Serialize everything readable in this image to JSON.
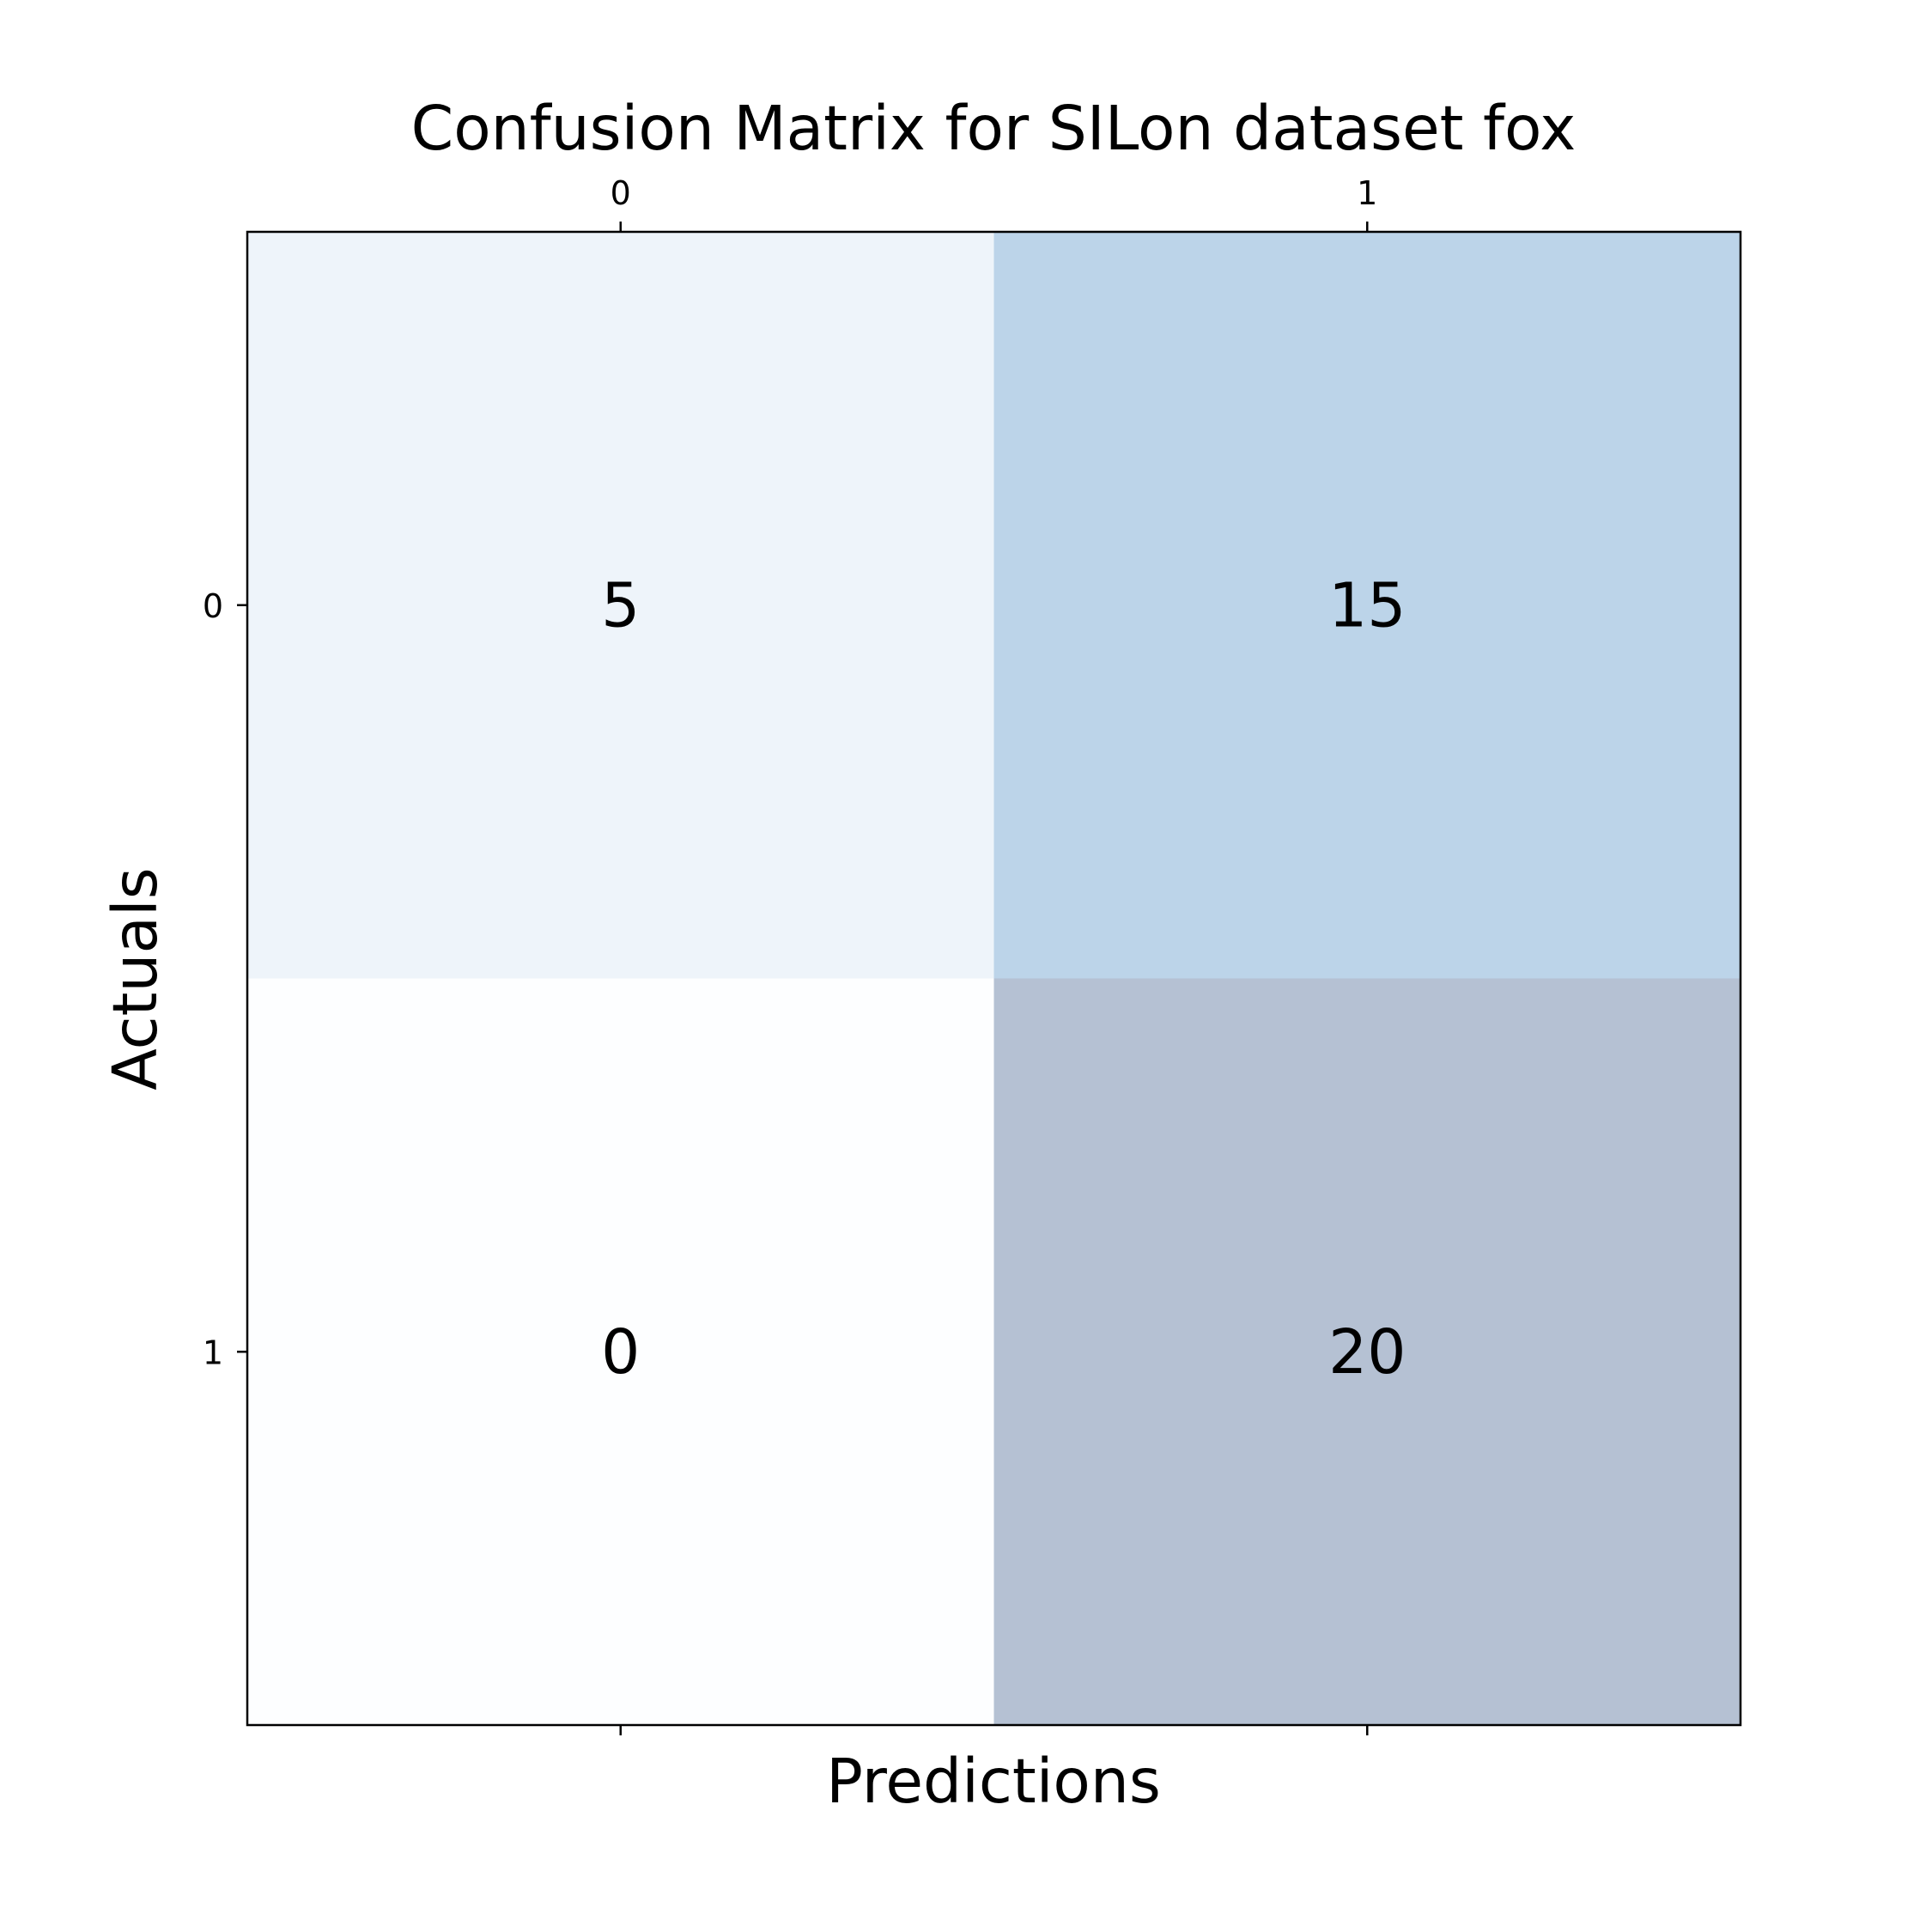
{
  "chart_data": {
    "type": "heatmap",
    "title": "Confusion Matrix for SILon dataset fox",
    "xlabel": "Predictions",
    "ylabel": "Actuals",
    "x_categories": [
      "0",
      "1"
    ],
    "y_categories": [
      "0",
      "1"
    ],
    "values": [
      [
        5,
        15
      ],
      [
        0,
        20
      ]
    ],
    "cell_labels": [
      [
        "5",
        "15"
      ],
      [
        "0",
        "20"
      ]
    ],
    "x_ticks_position": "top and bottom (labels on top)",
    "grid": false,
    "colors": {
      "low": "#f7fbff",
      "high": "#08306b",
      "alpha": 0.3
    }
  }
}
